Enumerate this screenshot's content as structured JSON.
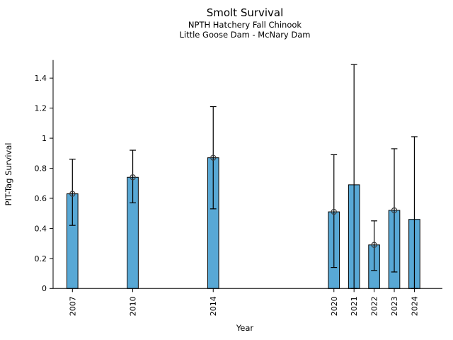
{
  "chart_data": {
    "type": "bar",
    "title": "Smolt Survival",
    "subtitle_line1": "NPTH Hatchery Fall Chinook",
    "subtitle_line2": "Little Goose Dam - McNary Dam",
    "xlabel": "Year",
    "ylabel": "PIT-Tag Survival",
    "categories": [
      2007,
      2010,
      2014,
      2020,
      2021,
      2022,
      2023,
      2024
    ],
    "values": [
      0.63,
      0.74,
      0.87,
      0.51,
      0.69,
      0.29,
      0.52,
      0.46
    ],
    "error_low": [
      0.42,
      0.57,
      0.53,
      0.14,
      0.0,
      0.12,
      0.11,
      0.0
    ],
    "error_high": [
      0.86,
      0.92,
      1.21,
      0.89,
      1.49,
      0.45,
      0.93,
      1.01
    ],
    "point_marker": [
      true,
      true,
      true,
      true,
      false,
      true,
      true,
      false
    ],
    "yticks": [
      0,
      0.2,
      0.4,
      0.6,
      0.8,
      1,
      1.2,
      1.4
    ],
    "ylim": [
      0,
      1.52
    ],
    "xlim": [
      2006,
      2025.4
    ],
    "grid": false,
    "legend": "none",
    "bar_color": "#58A8D5",
    "bar_edge_color": "#000000",
    "error_color": "#000000",
    "marker_style": "open-circle",
    "marker_color": "#3b3b3b",
    "axis_color": "#000000"
  }
}
